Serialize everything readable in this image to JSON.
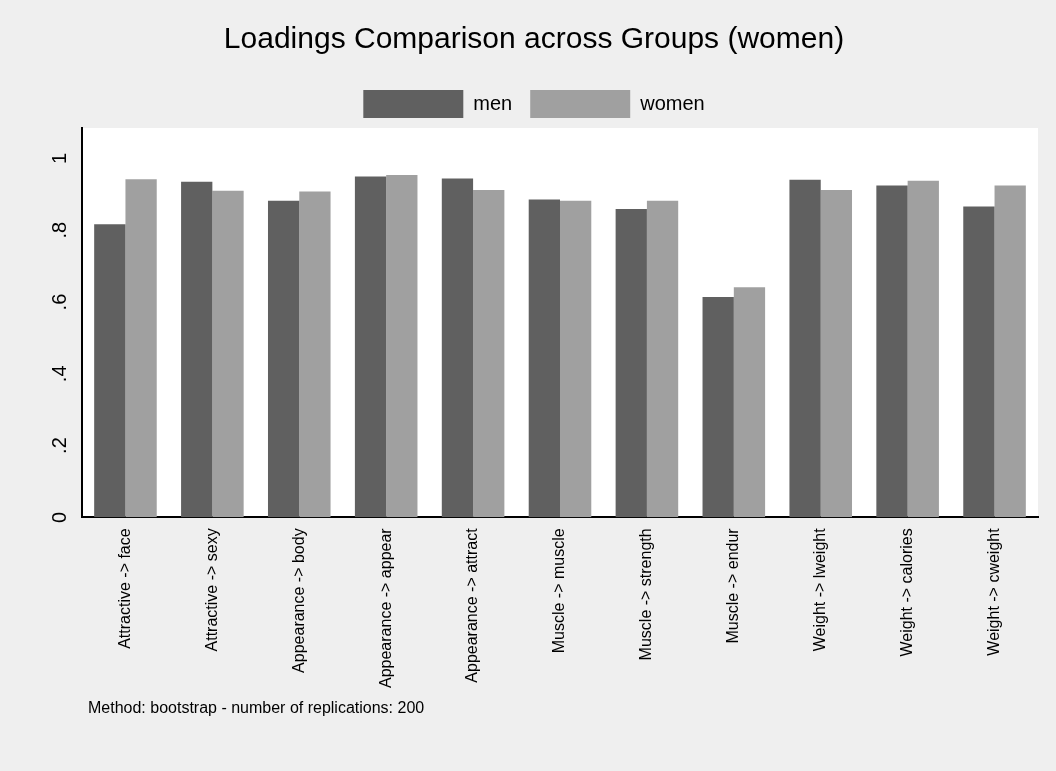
{
  "chart_data": {
    "type": "bar",
    "title": "Loadings Comparison across Groups (women)",
    "categories": [
      "Attractive -> face",
      "Attractive -> sexy",
      "Appearance -> body",
      "Appearance -> appear",
      "Appearance -> attract",
      "Muscle -> muscle",
      "Muscle -> strength",
      "Muscle -> endur",
      "Weight -> lweight",
      "Weight -> calories",
      "Weight -> cweight"
    ],
    "series": [
      {
        "name": "men",
        "color": "#606060",
        "values": [
          0.817,
          0.935,
          0.882,
          0.95,
          0.944,
          0.886,
          0.859,
          0.614,
          0.941,
          0.925,
          0.866
        ]
      },
      {
        "name": "women",
        "color": "#a0a0a0",
        "values": [
          0.942,
          0.91,
          0.908,
          0.954,
          0.912,
          0.882,
          0.882,
          0.641,
          0.912,
          0.938,
          0.925
        ]
      }
    ],
    "ylim": [
      0,
      1.085
    ],
    "yticks": [
      {
        "value": 0,
        "label": "0"
      },
      {
        "value": 0.2,
        "label": ".2"
      },
      {
        "value": 0.4,
        "label": ".4"
      },
      {
        "value": 0.6,
        "label": ".6"
      },
      {
        "value": 0.8,
        "label": ".8"
      },
      {
        "value": 1,
        "label": "1"
      }
    ],
    "grid": false,
    "legend": "top",
    "annotations": [
      "Method: bootstrap - number of replications: 200"
    ]
  }
}
